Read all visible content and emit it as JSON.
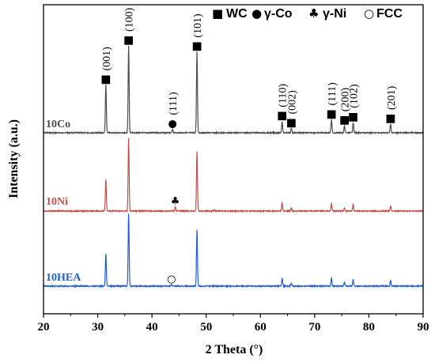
{
  "chart_data": {
    "type": "line",
    "xlabel": "2 Theta (°)",
    "ylabel": "Intensity (a.u.)",
    "xlim": [
      20,
      90
    ],
    "xticks": [
      20,
      30,
      40,
      50,
      60,
      70,
      80,
      90
    ],
    "legend": {
      "placement": "top-right",
      "entries": [
        {
          "symbol": "■",
          "label": "WC"
        },
        {
          "symbol": "●",
          "label": "γ-Co"
        },
        {
          "symbol": "♣",
          "label": "γ-Ni"
        },
        {
          "symbol": "○",
          "label": "FCC"
        }
      ]
    },
    "series": [
      {
        "name": "10Co",
        "color": "#4d4d4d",
        "peaks": [
          {
            "x": 31.5,
            "y": 0.55
          },
          {
            "x": 35.7,
            "y": 1.0
          },
          {
            "x": 43.8,
            "y": 0.04
          },
          {
            "x": 48.3,
            "y": 0.93
          },
          {
            "x": 64.0,
            "y": 0.13
          },
          {
            "x": 65.7,
            "y": 0.05
          },
          {
            "x": 73.1,
            "y": 0.15
          },
          {
            "x": 75.5,
            "y": 0.08
          },
          {
            "x": 77.1,
            "y": 0.12
          },
          {
            "x": 84.0,
            "y": 0.1
          }
        ]
      },
      {
        "name": "10Ni",
        "color": "#c0504d",
        "peaks": [
          {
            "x": 31.5,
            "y": 0.43
          },
          {
            "x": 35.7,
            "y": 1.0
          },
          {
            "x": 44.3,
            "y": 0.06
          },
          {
            "x": 48.3,
            "y": 0.82
          },
          {
            "x": 51.5,
            "y": 0.02
          },
          {
            "x": 64.0,
            "y": 0.11
          },
          {
            "x": 65.7,
            "y": 0.04
          },
          {
            "x": 73.1,
            "y": 0.11
          },
          {
            "x": 75.5,
            "y": 0.04
          },
          {
            "x": 77.1,
            "y": 0.1
          },
          {
            "x": 84.0,
            "y": 0.07
          }
        ]
      },
      {
        "name": "10HEA",
        "color": "#1f5fd0",
        "peaks": [
          {
            "x": 31.5,
            "y": 0.44
          },
          {
            "x": 35.7,
            "y": 1.0
          },
          {
            "x": 43.6,
            "y": 0.02
          },
          {
            "x": 48.3,
            "y": 0.77
          },
          {
            "x": 64.0,
            "y": 0.11
          },
          {
            "x": 65.7,
            "y": 0.04
          },
          {
            "x": 73.1,
            "y": 0.11
          },
          {
            "x": 75.5,
            "y": 0.05
          },
          {
            "x": 77.1,
            "y": 0.09
          },
          {
            "x": 84.0,
            "y": 0.08
          }
        ]
      }
    ],
    "annotations": [
      {
        "series": "10Co",
        "x": 31.5,
        "symbol": "■",
        "label": "(001)"
      },
      {
        "series": "10Co",
        "x": 35.7,
        "symbol": "■",
        "label": "(100)"
      },
      {
        "series": "10Co",
        "x": 43.8,
        "symbol": "●",
        "label": "(111)"
      },
      {
        "series": "10Co",
        "x": 48.3,
        "symbol": "■",
        "label": "(101)"
      },
      {
        "series": "10Co",
        "x": 64.0,
        "symbol": "■",
        "label": "(110)"
      },
      {
        "series": "10Co",
        "x": 65.7,
        "symbol": "■",
        "label": "(002)"
      },
      {
        "series": "10Co",
        "x": 73.1,
        "symbol": "■",
        "label": "(111)"
      },
      {
        "series": "10Co",
        "x": 75.5,
        "symbol": "■",
        "label": "(200)"
      },
      {
        "series": "10Co",
        "x": 77.1,
        "symbol": "■",
        "label": "(102)"
      },
      {
        "series": "10Co",
        "x": 84.0,
        "symbol": "■",
        "label": "(201)"
      },
      {
        "series": "10Ni",
        "x": 44.3,
        "symbol": "♣",
        "label": ""
      },
      {
        "series": "10HEA",
        "x": 43.6,
        "symbol": "○",
        "label": ""
      }
    ]
  }
}
